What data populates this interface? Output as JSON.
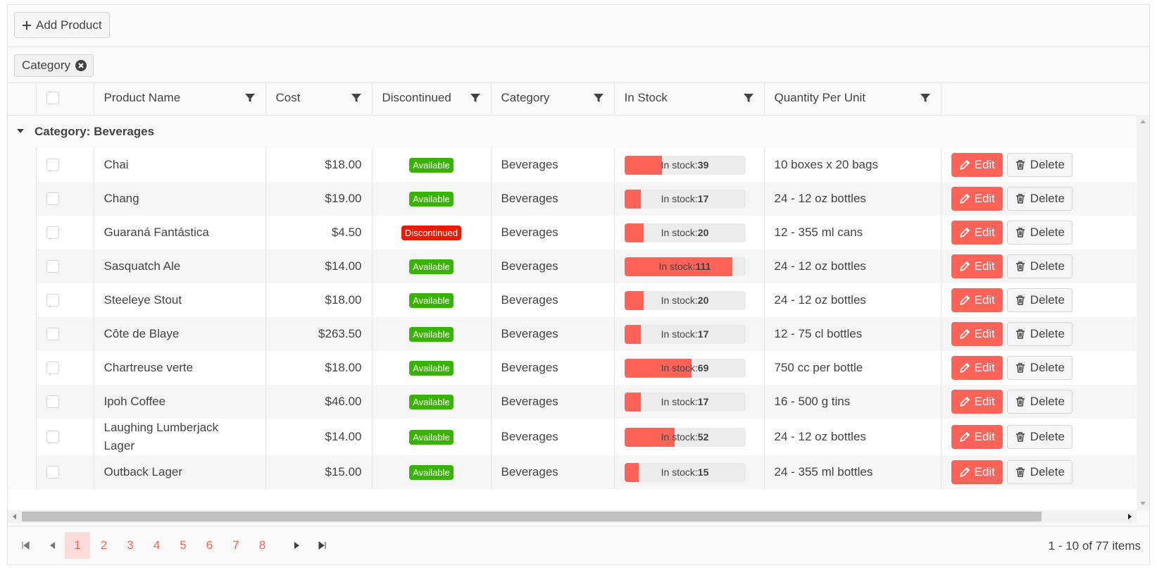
{
  "toolbar": {
    "add_button": "Add Product"
  },
  "group_chip": "Category",
  "columns": [
    "Product Name",
    "Cost",
    "Discontinued",
    "Category",
    "In Stock",
    "Quantity Per Unit"
  ],
  "group_header": "Category: Beverages",
  "stock_prefix": "In stock:",
  "actions": {
    "edit": "Edit",
    "delete": "Delete"
  },
  "rows": [
    {
      "name": "Chai",
      "cost": "$18.00",
      "status": "Available",
      "category": "Beverages",
      "stock": 39,
      "quantity": "10 boxes x 20 bags"
    },
    {
      "name": "Chang",
      "cost": "$19.00",
      "status": "Available",
      "category": "Beverages",
      "stock": 17,
      "quantity": "24 - 12 oz bottles"
    },
    {
      "name": "Guaraná Fantástica",
      "cost": "$4.50",
      "status": "Discontinued",
      "category": "Beverages",
      "stock": 20,
      "quantity": "12 - 355 ml cans"
    },
    {
      "name": "Sasquatch Ale",
      "cost": "$14.00",
      "status": "Available",
      "category": "Beverages",
      "stock": 111,
      "quantity": "24 - 12 oz bottles"
    },
    {
      "name": "Steeleye Stout",
      "cost": "$18.00",
      "status": "Available",
      "category": "Beverages",
      "stock": 20,
      "quantity": "24 - 12 oz bottles"
    },
    {
      "name": "Côte de Blaye",
      "cost": "$263.50",
      "status": "Available",
      "category": "Beverages",
      "stock": 17,
      "quantity": "12 - 75 cl bottles"
    },
    {
      "name": "Chartreuse verte",
      "cost": "$18.00",
      "status": "Available",
      "category": "Beverages",
      "stock": 69,
      "quantity": "750 cc per bottle"
    },
    {
      "name": "Ipoh Coffee",
      "cost": "$46.00",
      "status": "Available",
      "category": "Beverages",
      "stock": 17,
      "quantity": "16 - 500 g tins"
    },
    {
      "name": "Laughing Lumberjack Lager",
      "cost": "$14.00",
      "status": "Available",
      "category": "Beverages",
      "stock": 52,
      "quantity": "24 - 12 oz bottles"
    },
    {
      "name": "Outback Lager",
      "cost": "$15.00",
      "status": "Available",
      "category": "Beverages",
      "stock": 15,
      "quantity": "24 - 355 ml bottles"
    }
  ],
  "pager": {
    "pages": [
      1,
      2,
      3,
      4,
      5,
      6,
      7,
      8
    ],
    "info": "1 - 10 of 77 items"
  }
}
